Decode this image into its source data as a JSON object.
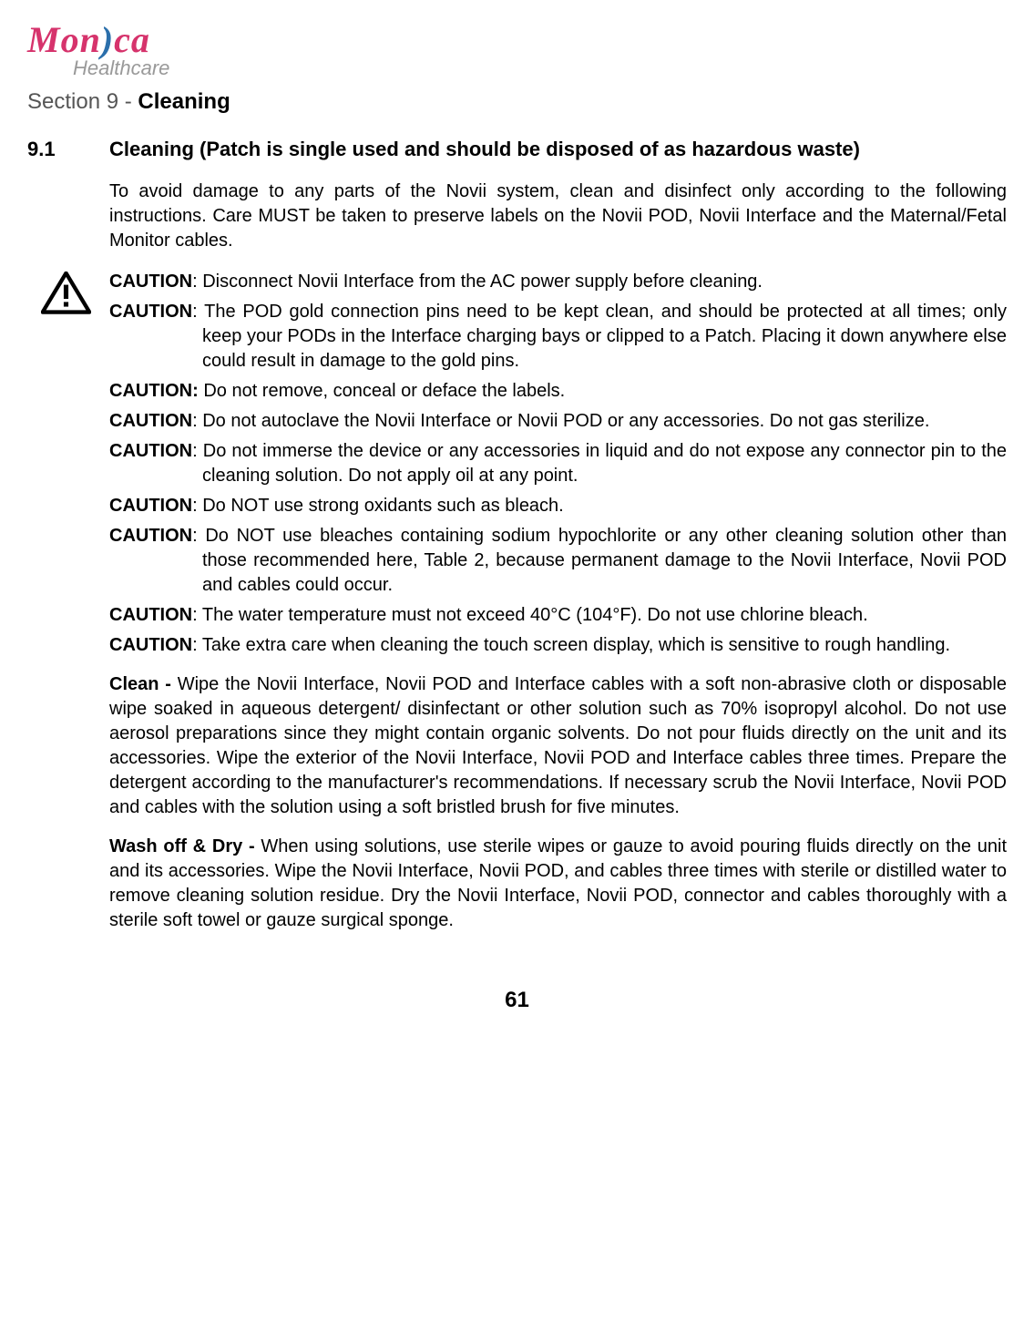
{
  "logo": {
    "part1": "Mon",
    "part2": "ca",
    "sub": "Healthcare"
  },
  "section": {
    "prefix": "Section 9 - ",
    "title": "Cleaning"
  },
  "sub": {
    "num": "9.1",
    "text": "Cleaning (Patch is single used and should be disposed of as hazardous waste)"
  },
  "intro": "To avoid damage to any parts of the Novii system, clean and disinfect only according to the following instructions. Care MUST be taken to preserve labels on the Novii POD, Novii Interface and the Maternal/Fetal Monitor cables.",
  "cautions": [
    {
      "label": "CAUTION",
      "sep": ": ",
      "text": "Disconnect Novii Interface from the AC power supply before cleaning.",
      "indent": false
    },
    {
      "label": "CAUTION",
      "sep": ": ",
      "text": "The POD gold connection pins need to be kept clean, and should be protected at all times; only keep your PODs in the Interface charging bays or clipped to a Patch. Placing it down anywhere else could result in damage to the gold pins.",
      "indent": true
    },
    {
      "label": "CAUTION",
      "sep": ": ",
      "text": "Do not remove, conceal or deface the labels.",
      "indent": false,
      "boldColon": true
    },
    {
      "label": "CAUTION",
      "sep": ": ",
      "text": "Do not autoclave the Novii Interface or Novii POD or any accessories. Do not gas sterilize.",
      "indent": true
    },
    {
      "label": "CAUTION",
      "sep": ": ",
      "text": "Do not immerse the device or any accessories in liquid and do not expose any connector pin to the cleaning solution. Do not apply oil at any point.",
      "indent": true
    },
    {
      "label": "CAUTION",
      "sep": ": ",
      "text": "Do NOT use strong oxidants such as bleach.",
      "indent": false
    },
    {
      "label": "CAUTION",
      "sep": ": ",
      "text": "Do NOT use bleaches containing sodium hypochlorite or any other cleaning solution other than those recommended here, Table 2, because permanent damage to the Novii Interface, Novii POD and cables could occur.",
      "indent": true
    },
    {
      "label": "CAUTION",
      "sep": ": ",
      "text": "The water temperature must not exceed 40°C (104°F). Do not use chlorine bleach.",
      "indent": false
    },
    {
      "label": "CAUTION",
      "sep": ": ",
      "text": "Take extra care when cleaning the touch screen display, which is sensitive to rough handling.",
      "indent": true
    }
  ],
  "paras": [
    {
      "lead": "Clean - ",
      "text": "Wipe the Novii Interface, Novii POD and Interface cables with a soft non-abrasive cloth or disposable wipe soaked in aqueous detergent/ disinfectant or other solution such as 70% isopropyl alcohol. Do not use aerosol preparations since they might contain organic solvents. Do not pour fluids directly on the unit and its accessories. Wipe the exterior of the Novii Interface, Novii POD and Interface cables three times. Prepare the detergent according to the manufacturer's recommendations. If necessary scrub the Novii Interface, Novii POD and cables with the solution using a soft bristled brush for five minutes."
    },
    {
      "lead": "Wash off & Dry - ",
      "text": "When using solutions, use sterile wipes or gauze to avoid pouring fluids directly on the unit and its accessories. Wipe the Novii Interface, Novii POD, and cables three times with sterile or distilled water to remove cleaning solution residue. Dry the Novii Interface, Novii POD, connector and cables thoroughly with a sterile soft towel or gauze surgical sponge."
    }
  ],
  "pagenum": "61"
}
